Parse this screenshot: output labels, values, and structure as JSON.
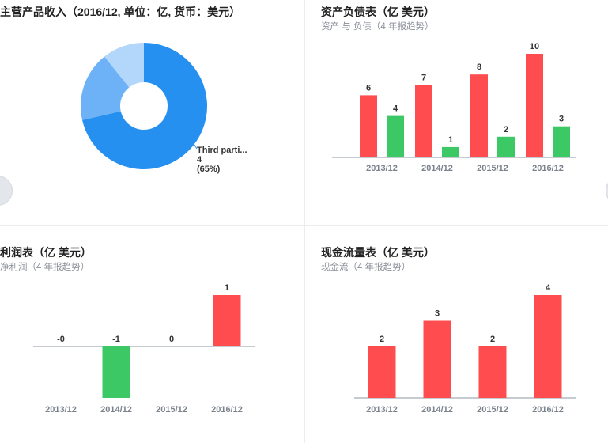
{
  "chart_data": [
    {
      "type": "pie",
      "title": "主营产品收入（2016/12, 单位：亿, 货币：美元）",
      "slices": [
        {
          "label": "Third parti...",
          "value": 4,
          "percent": "(65%)",
          "color": "#2590f0"
        },
        {
          "label": "",
          "value": 1,
          "percent": "",
          "color": "#6db2f7"
        },
        {
          "label": "",
          "value": 0.6,
          "percent": "",
          "color": "#b3d6fb"
        }
      ],
      "visible_label": {
        "name": "Third parti...",
        "value": "4",
        "percent": "(65%)"
      }
    },
    {
      "type": "bar",
      "title": "资产负债表（亿 美元）",
      "subtitle": "资产 与 负债（4 年报趋势）",
      "categories": [
        "2013/12",
        "2014/12",
        "2015/12",
        "2016/12"
      ],
      "series": [
        {
          "values": [
            6,
            7,
            8,
            10
          ],
          "color": "#ff4d4f"
        },
        {
          "values": [
            4,
            1,
            2,
            3
          ],
          "color": "#3cc864"
        }
      ],
      "ylim": [
        0,
        10
      ]
    },
    {
      "type": "bar",
      "title": "利润表（亿 美元）",
      "subtitle": "净利润（4 年报趋势）",
      "categories": [
        "2013/12",
        "2014/12",
        "2015/12",
        "2016/12"
      ],
      "values": [
        -0.1,
        -1,
        0,
        1
      ],
      "labels": [
        "-0",
        "-1",
        "0",
        "1"
      ],
      "pos_color": "#ff4d4f",
      "neg_color": "#3cc864",
      "ylim": [
        -1,
        1
      ]
    },
    {
      "type": "bar",
      "title": "现金流量表（亿 美元）",
      "subtitle": "现金流（4 年报趋势）",
      "categories": [
        "2013/12",
        "2014/12",
        "2015/12",
        "2016/12"
      ],
      "values": [
        2,
        3,
        2,
        4
      ],
      "color": "#ff4d4f",
      "ylim": [
        0,
        4
      ]
    }
  ]
}
